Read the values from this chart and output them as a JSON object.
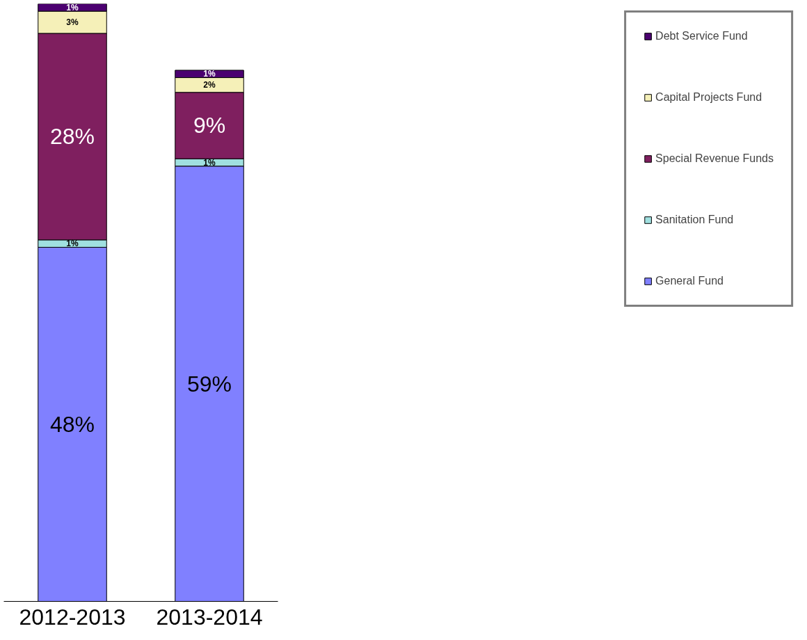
{
  "chart_data": {
    "type": "bar",
    "stacked": true,
    "legend": "right",
    "grid": false,
    "categories": [
      "2012-2013",
      "2013-2014"
    ],
    "series": [
      {
        "name": "General Fund",
        "color": "#8080ff",
        "values": [
          48,
          59
        ],
        "value_labels": [
          "48%",
          "59%"
        ]
      },
      {
        "name": "Sanitation Fund",
        "color": "#a0e0e0",
        "values": [
          1,
          1
        ],
        "value_labels": [
          "1%",
          "1%"
        ]
      },
      {
        "name": "Special Revenue Funds",
        "color": "#7f1f5f",
        "values": [
          28,
          9
        ],
        "value_labels": [
          "28%",
          "9%"
        ]
      },
      {
        "name": "Capital Projects Fund",
        "color": "#f5f0b8",
        "values": [
          3,
          2
        ],
        "value_labels": [
          "3%",
          "2%"
        ]
      },
      {
        "name": "Debt Service Fund",
        "color": "#4b0070",
        "values": [
          1,
          1
        ],
        "value_labels": [
          "1%",
          "1%"
        ]
      }
    ]
  }
}
